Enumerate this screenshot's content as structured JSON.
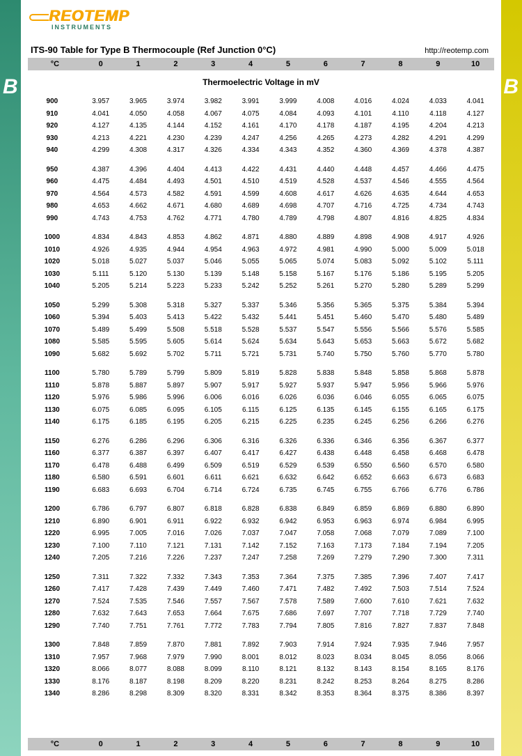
{
  "logo": {
    "main": "REOTEMP",
    "sub": "INSTRUMENTS"
  },
  "side_letter": "B",
  "title": "ITS-90 Table for Type B Thermocouple (Ref Junction 0°C)",
  "url": "http://reotemp.com",
  "subtitle": "Thermoelectric Voltage in mV",
  "header": {
    "temp_label": "°C",
    "cols": [
      "0",
      "1",
      "2",
      "3",
      "4",
      "5",
      "6",
      "7",
      "8",
      "9",
      "10"
    ]
  },
  "colors": {
    "left_top": "#2d8a6f",
    "left_bot": "#8dd4be",
    "right_top": "#d4c800",
    "right_bot": "#f2e77a",
    "header_bg": "#c4c4c4",
    "logo_orange": "#f7a600",
    "logo_green": "#2a7a60"
  },
  "groups": [
    [
      {
        "t": "900",
        "v": [
          "3.957",
          "3.965",
          "3.974",
          "3.982",
          "3.991",
          "3.999",
          "4.008",
          "4.016",
          "4.024",
          "4.033",
          "4.041"
        ]
      },
      {
        "t": "910",
        "v": [
          "4.041",
          "4.050",
          "4.058",
          "4.067",
          "4.075",
          "4.084",
          "4.093",
          "4.101",
          "4.110",
          "4.118",
          "4.127"
        ]
      },
      {
        "t": "920",
        "v": [
          "4.127",
          "4.135",
          "4.144",
          "4.152",
          "4.161",
          "4.170",
          "4.178",
          "4.187",
          "4.195",
          "4.204",
          "4.213"
        ]
      },
      {
        "t": "930",
        "v": [
          "4.213",
          "4.221",
          "4.230",
          "4.239",
          "4.247",
          "4.256",
          "4.265",
          "4.273",
          "4.282",
          "4.291",
          "4.299"
        ]
      },
      {
        "t": "940",
        "v": [
          "4.299",
          "4.308",
          "4.317",
          "4.326",
          "4.334",
          "4.343",
          "4.352",
          "4.360",
          "4.369",
          "4.378",
          "4.387"
        ]
      }
    ],
    [
      {
        "t": "950",
        "v": [
          "4.387",
          "4.396",
          "4.404",
          "4.413",
          "4.422",
          "4.431",
          "4.440",
          "4.448",
          "4.457",
          "4.466",
          "4.475"
        ]
      },
      {
        "t": "960",
        "v": [
          "4.475",
          "4.484",
          "4.493",
          "4.501",
          "4.510",
          "4.519",
          "4.528",
          "4.537",
          "4.546",
          "4.555",
          "4.564"
        ]
      },
      {
        "t": "970",
        "v": [
          "4.564",
          "4.573",
          "4.582",
          "4.591",
          "4.599",
          "4.608",
          "4.617",
          "4.626",
          "4.635",
          "4.644",
          "4.653"
        ]
      },
      {
        "t": "980",
        "v": [
          "4.653",
          "4.662",
          "4.671",
          "4.680",
          "4.689",
          "4.698",
          "4.707",
          "4.716",
          "4.725",
          "4.734",
          "4.743"
        ]
      },
      {
        "t": "990",
        "v": [
          "4.743",
          "4.753",
          "4.762",
          "4.771",
          "4.780",
          "4.789",
          "4.798",
          "4.807",
          "4.816",
          "4.825",
          "4.834"
        ]
      }
    ],
    [
      {
        "t": "1000",
        "v": [
          "4.834",
          "4.843",
          "4.853",
          "4.862",
          "4.871",
          "4.880",
          "4.889",
          "4.898",
          "4.908",
          "4.917",
          "4.926"
        ]
      },
      {
        "t": "1010",
        "v": [
          "4.926",
          "4.935",
          "4.944",
          "4.954",
          "4.963",
          "4.972",
          "4.981",
          "4.990",
          "5.000",
          "5.009",
          "5.018"
        ]
      },
      {
        "t": "1020",
        "v": [
          "5.018",
          "5.027",
          "5.037",
          "5.046",
          "5.055",
          "5.065",
          "5.074",
          "5.083",
          "5.092",
          "5.102",
          "5.111"
        ]
      },
      {
        "t": "1030",
        "v": [
          "5.111",
          "5.120",
          "5.130",
          "5.139",
          "5.148",
          "5.158",
          "5.167",
          "5.176",
          "5.186",
          "5.195",
          "5.205"
        ]
      },
      {
        "t": "1040",
        "v": [
          "5.205",
          "5.214",
          "5.223",
          "5.233",
          "5.242",
          "5.252",
          "5.261",
          "5.270",
          "5.280",
          "5.289",
          "5.299"
        ]
      }
    ],
    [
      {
        "t": "1050",
        "v": [
          "5.299",
          "5.308",
          "5.318",
          "5.327",
          "5.337",
          "5.346",
          "5.356",
          "5.365",
          "5.375",
          "5.384",
          "5.394"
        ]
      },
      {
        "t": "1060",
        "v": [
          "5.394",
          "5.403",
          "5.413",
          "5.422",
          "5.432",
          "5.441",
          "5.451",
          "5.460",
          "5.470",
          "5.480",
          "5.489"
        ]
      },
      {
        "t": "1070",
        "v": [
          "5.489",
          "5.499",
          "5.508",
          "5.518",
          "5.528",
          "5.537",
          "5.547",
          "5.556",
          "5.566",
          "5.576",
          "5.585"
        ]
      },
      {
        "t": "1080",
        "v": [
          "5.585",
          "5.595",
          "5.605",
          "5.614",
          "5.624",
          "5.634",
          "5.643",
          "5.653",
          "5.663",
          "5.672",
          "5.682"
        ]
      },
      {
        "t": "1090",
        "v": [
          "5.682",
          "5.692",
          "5.702",
          "5.711",
          "5.721",
          "5.731",
          "5.740",
          "5.750",
          "5.760",
          "5.770",
          "5.780"
        ]
      }
    ],
    [
      {
        "t": "1100",
        "v": [
          "5.780",
          "5.789",
          "5.799",
          "5.809",
          "5.819",
          "5.828",
          "5.838",
          "5.848",
          "5.858",
          "5.868",
          "5.878"
        ]
      },
      {
        "t": "1110",
        "v": [
          "5.878",
          "5.887",
          "5.897",
          "5.907",
          "5.917",
          "5.927",
          "5.937",
          "5.947",
          "5.956",
          "5.966",
          "5.976"
        ]
      },
      {
        "t": "1120",
        "v": [
          "5.976",
          "5.986",
          "5.996",
          "6.006",
          "6.016",
          "6.026",
          "6.036",
          "6.046",
          "6.055",
          "6.065",
          "6.075"
        ]
      },
      {
        "t": "1130",
        "v": [
          "6.075",
          "6.085",
          "6.095",
          "6.105",
          "6.115",
          "6.125",
          "6.135",
          "6.145",
          "6.155",
          "6.165",
          "6.175"
        ]
      },
      {
        "t": "1140",
        "v": [
          "6.175",
          "6.185",
          "6.195",
          "6.205",
          "6.215",
          "6.225",
          "6.235",
          "6.245",
          "6.256",
          "6.266",
          "6.276"
        ]
      }
    ],
    [
      {
        "t": "1150",
        "v": [
          "6.276",
          "6.286",
          "6.296",
          "6.306",
          "6.316",
          "6.326",
          "6.336",
          "6.346",
          "6.356",
          "6.367",
          "6.377"
        ]
      },
      {
        "t": "1160",
        "v": [
          "6.377",
          "6.387",
          "6.397",
          "6.407",
          "6.417",
          "6.427",
          "6.438",
          "6.448",
          "6.458",
          "6.468",
          "6.478"
        ]
      },
      {
        "t": "1170",
        "v": [
          "6.478",
          "6.488",
          "6.499",
          "6.509",
          "6.519",
          "6.529",
          "6.539",
          "6.550",
          "6.560",
          "6.570",
          "6.580"
        ]
      },
      {
        "t": "1180",
        "v": [
          "6.580",
          "6.591",
          "6.601",
          "6.611",
          "6.621",
          "6.632",
          "6.642",
          "6.652",
          "6.663",
          "6.673",
          "6.683"
        ]
      },
      {
        "t": "1190",
        "v": [
          "6.683",
          "6.693",
          "6.704",
          "6.714",
          "6.724",
          "6.735",
          "6.745",
          "6.755",
          "6.766",
          "6.776",
          "6.786"
        ]
      }
    ],
    [
      {
        "t": "1200",
        "v": [
          "6.786",
          "6.797",
          "6.807",
          "6.818",
          "6.828",
          "6.838",
          "6.849",
          "6.859",
          "6.869",
          "6.880",
          "6.890"
        ]
      },
      {
        "t": "1210",
        "v": [
          "6.890",
          "6.901",
          "6.911",
          "6.922",
          "6.932",
          "6.942",
          "6.953",
          "6.963",
          "6.974",
          "6.984",
          "6.995"
        ]
      },
      {
        "t": "1220",
        "v": [
          "6.995",
          "7.005",
          "7.016",
          "7.026",
          "7.037",
          "7.047",
          "7.058",
          "7.068",
          "7.079",
          "7.089",
          "7.100"
        ]
      },
      {
        "t": "1230",
        "v": [
          "7.100",
          "7.110",
          "7.121",
          "7.131",
          "7.142",
          "7.152",
          "7.163",
          "7.173",
          "7.184",
          "7.194",
          "7.205"
        ]
      },
      {
        "t": "1240",
        "v": [
          "7.205",
          "7.216",
          "7.226",
          "7.237",
          "7.247",
          "7.258",
          "7.269",
          "7.279",
          "7.290",
          "7.300",
          "7.311"
        ]
      }
    ],
    [
      {
        "t": "1250",
        "v": [
          "7.311",
          "7.322",
          "7.332",
          "7.343",
          "7.353",
          "7.364",
          "7.375",
          "7.385",
          "7.396",
          "7.407",
          "7.417"
        ]
      },
      {
        "t": "1260",
        "v": [
          "7.417",
          "7.428",
          "7.439",
          "7.449",
          "7.460",
          "7.471",
          "7.482",
          "7.492",
          "7.503",
          "7.514",
          "7.524"
        ]
      },
      {
        "t": "1270",
        "v": [
          "7.524",
          "7.535",
          "7.546",
          "7.557",
          "7.567",
          "7.578",
          "7.589",
          "7.600",
          "7.610",
          "7.621",
          "7.632"
        ]
      },
      {
        "t": "1280",
        "v": [
          "7.632",
          "7.643",
          "7.653",
          "7.664",
          "7.675",
          "7.686",
          "7.697",
          "7.707",
          "7.718",
          "7.729",
          "7.740"
        ]
      },
      {
        "t": "1290",
        "v": [
          "7.740",
          "7.751",
          "7.761",
          "7.772",
          "7.783",
          "7.794",
          "7.805",
          "7.816",
          "7.827",
          "7.837",
          "7.848"
        ]
      }
    ],
    [
      {
        "t": "1300",
        "v": [
          "7.848",
          "7.859",
          "7.870",
          "7.881",
          "7.892",
          "7.903",
          "7.914",
          "7.924",
          "7.935",
          "7.946",
          "7.957"
        ]
      },
      {
        "t": "1310",
        "v": [
          "7.957",
          "7.968",
          "7.979",
          "7.990",
          "8.001",
          "8.012",
          "8.023",
          "8.034",
          "8.045",
          "8.056",
          "8.066"
        ]
      },
      {
        "t": "1320",
        "v": [
          "8.066",
          "8.077",
          "8.088",
          "8.099",
          "8.110",
          "8.121",
          "8.132",
          "8.143",
          "8.154",
          "8.165",
          "8.176"
        ]
      },
      {
        "t": "1330",
        "v": [
          "8.176",
          "8.187",
          "8.198",
          "8.209",
          "8.220",
          "8.231",
          "8.242",
          "8.253",
          "8.264",
          "8.275",
          "8.286"
        ]
      },
      {
        "t": "1340",
        "v": [
          "8.286",
          "8.298",
          "8.309",
          "8.320",
          "8.331",
          "8.342",
          "8.353",
          "8.364",
          "8.375",
          "8.386",
          "8.397"
        ]
      }
    ]
  ]
}
